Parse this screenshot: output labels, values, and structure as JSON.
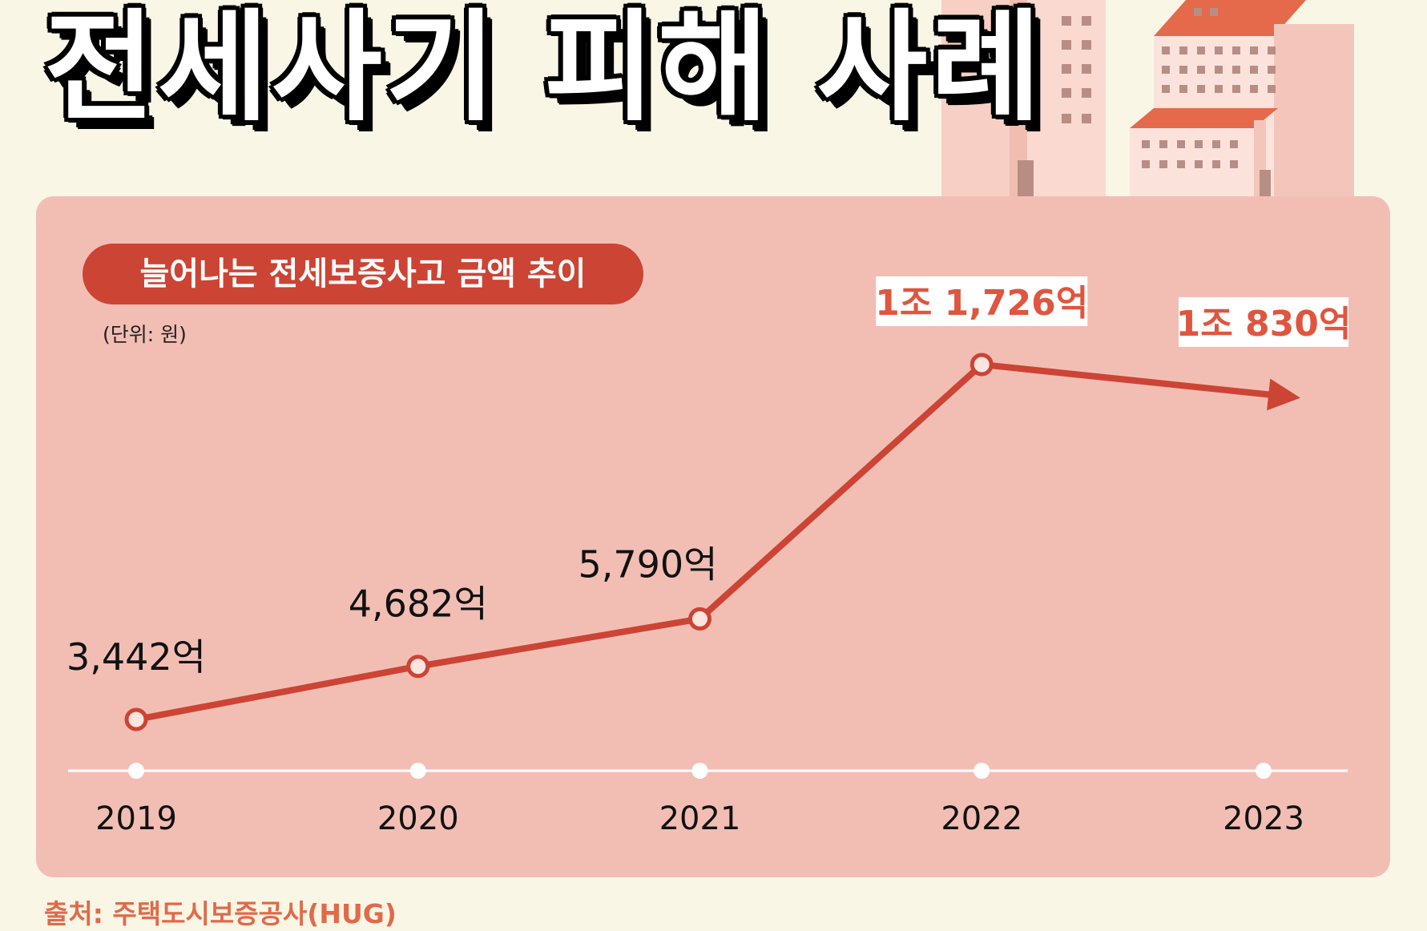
{
  "title": "전세사기 피해 사례",
  "subtitle": "늘어나는 전세보증사고 금액 추이",
  "unit": "(단위: 원)",
  "source": "출처: 주택도시보증공사(HUG)",
  "colors": {
    "line": "#cc4434",
    "highlight_text": "#e0553e",
    "panel": "#f2beb4",
    "background": "#faf6e6"
  },
  "chart_data": {
    "type": "line",
    "categories": [
      "2019",
      "2020",
      "2021",
      "2022",
      "2023"
    ],
    "values": [
      3442,
      4682,
      5790,
      11726,
      10830
    ],
    "value_unit": "억 원",
    "labels": [
      "3,442억",
      "4,682억",
      "5,790억",
      "1조 1,726억",
      "1조 830억"
    ],
    "highlighted": [
      false,
      false,
      false,
      true,
      true
    ],
    "last_point_shown_as_arrow": true,
    "grid": false,
    "legend": "none"
  }
}
